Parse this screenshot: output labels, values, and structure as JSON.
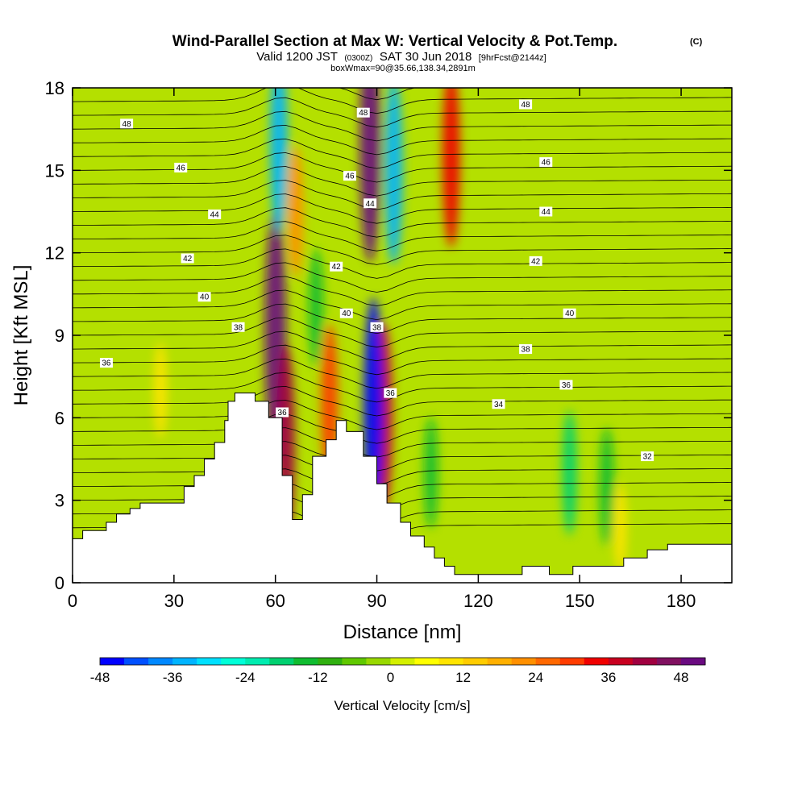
{
  "chart_data": {
    "type": "heatmap",
    "title": "Wind-Parallel Section at Max W: Vertical Velocity & Pot.Temp.",
    "title_mark": "(C)",
    "subtitle": {
      "valid": "Valid 1200 JST",
      "utc": "(0300Z)",
      "date": "SAT 30 Jun 2018",
      "fcst": "[9hrFcst@2144z]"
    },
    "subtitle2": "boxWmax=90@35.66,138.34,2891m",
    "xlabel": "Distance [nm]",
    "ylabel": "Height [Kft MSL]",
    "xlim": [
      0,
      195
    ],
    "ylim": [
      0,
      18
    ],
    "x_ticks": [
      0,
      30,
      60,
      90,
      120,
      150,
      180
    ],
    "y_ticks": [
      0,
      3,
      6,
      9,
      12,
      15,
      18
    ],
    "colorbar": {
      "label": "Vertical Velocity [cm/s]",
      "tick_labels": [
        "-48",
        "-36",
        "-24",
        "-12",
        "0",
        "12",
        "24",
        "36",
        "48"
      ],
      "tick_values": [
        -48,
        -36,
        -24,
        -12,
        0,
        12,
        24,
        36,
        48
      ],
      "range": [
        -48,
        54
      ],
      "interval": 4,
      "colors": [
        "#0000ff",
        "#0050ff",
        "#0088ff",
        "#00b4ff",
        "#00e0ff",
        "#00ffd8",
        "#00ecb0",
        "#00d070",
        "#10bc30",
        "#30b010",
        "#60c800",
        "#98d800",
        "#d4f000",
        "#ffff00",
        "#ffe400",
        "#ffcc00",
        "#ffb000",
        "#ff9000",
        "#ff6800",
        "#ff3c00",
        "#f00000",
        "#c80020",
        "#a00040",
        "#801060",
        "#6a0a80"
      ]
    },
    "velocity_features": [
      {
        "type": "updraft",
        "x": 26,
        "y": 7.0,
        "w": 10
      },
      {
        "type": "updraft",
        "x": 60,
        "y": 9.0,
        "w": 54
      },
      {
        "type": "updraft",
        "x": 63,
        "y": 5.0,
        "w": 40
      },
      {
        "type": "updraft",
        "x": 66,
        "y": 13.5,
        "w": 20
      },
      {
        "type": "updraft",
        "x": 76,
        "y": 6.5,
        "w": 28
      },
      {
        "type": "updraft",
        "x": 88,
        "y": 16.0,
        "w": 50
      },
      {
        "type": "updraft",
        "x": 92,
        "y": 6.0,
        "w": 36
      },
      {
        "type": "updraft",
        "x": 112,
        "y": 15.5,
        "w": 34
      },
      {
        "type": "updraft",
        "x": 162,
        "y": 2.0,
        "w": 8
      },
      {
        "type": "downdraft",
        "x": 61,
        "y": 16.0,
        "w": -34
      },
      {
        "type": "downdraft",
        "x": 72,
        "y": 10.0,
        "w": -16
      },
      {
        "type": "downdraft",
        "x": 89,
        "y": 6.3,
        "w": -46
      },
      {
        "type": "downdraft",
        "x": 95,
        "y": 15.0,
        "w": -36
      },
      {
        "type": "downdraft",
        "x": 106,
        "y": 4.0,
        "w": -14
      },
      {
        "type": "downdraft",
        "x": 147,
        "y": 4.0,
        "w": -18
      },
      {
        "type": "downdraft",
        "x": 158,
        "y": 3.5,
        "w": -16
      }
    ],
    "theta_labels": [
      {
        "text": "48",
        "x": 16,
        "y": 16.7
      },
      {
        "text": "48",
        "x": 86,
        "y": 17.1
      },
      {
        "text": "48",
        "x": 134,
        "y": 17.4
      },
      {
        "text": "46",
        "x": 32,
        "y": 15.1
      },
      {
        "text": "46",
        "x": 82,
        "y": 14.8
      },
      {
        "text": "46",
        "x": 140,
        "y": 15.3
      },
      {
        "text": "44",
        "x": 42,
        "y": 13.4
      },
      {
        "text": "44",
        "x": 88,
        "y": 13.8
      },
      {
        "text": "44",
        "x": 140,
        "y": 13.5
      },
      {
        "text": "42",
        "x": 34,
        "y": 11.8
      },
      {
        "text": "42",
        "x": 78,
        "y": 11.5
      },
      {
        "text": "42",
        "x": 137,
        "y": 11.7
      },
      {
        "text": "40",
        "x": 39,
        "y": 10.4
      },
      {
        "text": "40",
        "x": 81,
        "y": 9.8
      },
      {
        "text": "40",
        "x": 147,
        "y": 9.8
      },
      {
        "text": "38",
        "x": 49,
        "y": 9.3
      },
      {
        "text": "38",
        "x": 90,
        "y": 9.3
      },
      {
        "text": "38",
        "x": 134,
        "y": 8.5
      },
      {
        "text": "36",
        "x": 10,
        "y": 8.0
      },
      {
        "text": "36",
        "x": 62,
        "y": 6.2
      },
      {
        "text": "36",
        "x": 94,
        "y": 6.9
      },
      {
        "text": "36",
        "x": 146,
        "y": 7.2
      },
      {
        "text": "34",
        "x": 126,
        "y": 6.5
      },
      {
        "text": "32",
        "x": 170,
        "y": 4.6
      }
    ],
    "terrain": [
      [
        0,
        1.6
      ],
      [
        3,
        1.6
      ],
      [
        3,
        1.9
      ],
      [
        10,
        1.9
      ],
      [
        10,
        2.2
      ],
      [
        13,
        2.2
      ],
      [
        13,
        2.5
      ],
      [
        17,
        2.5
      ],
      [
        17,
        2.7
      ],
      [
        20,
        2.7
      ],
      [
        20,
        2.9
      ],
      [
        33,
        2.9
      ],
      [
        33,
        3.5
      ],
      [
        36,
        3.5
      ],
      [
        36,
        3.9
      ],
      [
        39,
        3.9
      ],
      [
        39,
        4.5
      ],
      [
        42,
        4.5
      ],
      [
        42,
        5.1
      ],
      [
        45,
        5.1
      ],
      [
        45,
        5.9
      ],
      [
        46,
        5.9
      ],
      [
        46,
        6.6
      ],
      [
        48,
        6.6
      ],
      [
        48,
        6.9
      ],
      [
        54,
        6.9
      ],
      [
        54,
        6.6
      ],
      [
        58,
        6.6
      ],
      [
        58,
        6.0
      ],
      [
        62,
        6.0
      ],
      [
        62,
        3.9
      ],
      [
        65,
        3.9
      ],
      [
        65,
        2.3
      ],
      [
        68,
        2.3
      ],
      [
        68,
        3.2
      ],
      [
        71,
        3.2
      ],
      [
        71,
        4.6
      ],
      [
        75,
        4.6
      ],
      [
        75,
        5.2
      ],
      [
        78,
        5.2
      ],
      [
        78,
        5.9
      ],
      [
        81,
        5.9
      ],
      [
        81,
        5.5
      ],
      [
        86,
        5.5
      ],
      [
        86,
        4.6
      ],
      [
        90,
        4.6
      ],
      [
        90,
        3.6
      ],
      [
        93,
        3.6
      ],
      [
        93,
        2.9
      ],
      [
        97,
        2.9
      ],
      [
        97,
        2.2
      ],
      [
        100,
        2.2
      ],
      [
        100,
        1.7
      ],
      [
        104,
        1.7
      ],
      [
        104,
        1.3
      ],
      [
        107,
        1.3
      ],
      [
        107,
        0.9
      ],
      [
        110,
        0.9
      ],
      [
        110,
        0.6
      ],
      [
        113,
        0.6
      ],
      [
        113,
        0.3
      ],
      [
        133,
        0.3
      ],
      [
        133,
        0.6
      ],
      [
        141,
        0.6
      ],
      [
        141,
        0.3
      ],
      [
        148,
        0.3
      ],
      [
        148,
        0.6
      ],
      [
        163,
        0.6
      ],
      [
        163,
        0.9
      ],
      [
        170,
        0.9
      ],
      [
        170,
        1.2
      ],
      [
        176,
        1.2
      ],
      [
        176,
        1.4
      ],
      [
        195,
        1.4
      ]
    ]
  }
}
